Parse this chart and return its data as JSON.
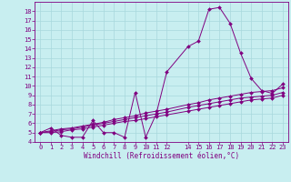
{
  "xlabel": "Windchill (Refroidissement éolien,°C)",
  "bg_color": "#c8eef0",
  "line_color": "#800080",
  "grid_color": "#a8d8dc",
  "xlim": [
    -0.5,
    23.5
  ],
  "ylim": [
    4,
    19
  ],
  "xticks": [
    0,
    1,
    2,
    3,
    4,
    5,
    6,
    7,
    8,
    9,
    10,
    11,
    12,
    14,
    15,
    16,
    17,
    18,
    19,
    20,
    21,
    22,
    23
  ],
  "yticks": [
    4,
    5,
    6,
    7,
    8,
    9,
    10,
    11,
    12,
    13,
    14,
    15,
    16,
    17,
    18
  ],
  "series1_x": [
    0,
    1,
    2,
    3,
    4,
    5,
    6,
    7,
    8,
    9,
    10,
    11,
    12,
    14,
    15,
    16,
    17,
    18,
    19,
    20,
    21,
    22,
    23
  ],
  "series1_y": [
    5.0,
    5.5,
    4.7,
    4.5,
    4.5,
    6.3,
    5.0,
    5.0,
    4.5,
    9.3,
    4.5,
    7.0,
    11.5,
    14.2,
    14.8,
    18.2,
    18.4,
    16.7,
    13.5,
    10.8,
    9.5,
    9.2,
    10.2
  ],
  "series2_x": [
    0,
    1,
    2,
    3,
    4,
    5,
    6,
    7,
    8,
    9,
    10,
    11,
    12,
    14,
    15,
    16,
    17,
    18,
    19,
    20,
    21,
    22,
    23
  ],
  "series2_y": [
    5.0,
    5.2,
    5.4,
    5.5,
    5.7,
    5.9,
    6.1,
    6.4,
    6.6,
    6.8,
    7.1,
    7.3,
    7.5,
    8.0,
    8.2,
    8.5,
    8.7,
    8.9,
    9.1,
    9.3,
    9.4,
    9.5,
    9.8
  ],
  "series3_x": [
    0,
    1,
    2,
    3,
    4,
    5,
    6,
    7,
    8,
    9,
    10,
    11,
    12,
    14,
    15,
    16,
    17,
    18,
    19,
    20,
    21,
    22,
    23
  ],
  "series3_y": [
    5.0,
    5.1,
    5.3,
    5.4,
    5.6,
    5.8,
    6.0,
    6.2,
    6.4,
    6.6,
    6.8,
    7.0,
    7.2,
    7.7,
    7.9,
    8.1,
    8.3,
    8.5,
    8.7,
    8.8,
    8.9,
    9.0,
    9.3
  ],
  "series4_x": [
    0,
    1,
    2,
    3,
    4,
    5,
    6,
    7,
    8,
    9,
    10,
    11,
    12,
    14,
    15,
    16,
    17,
    18,
    19,
    20,
    21,
    22,
    23
  ],
  "series4_y": [
    5.0,
    5.0,
    5.1,
    5.3,
    5.4,
    5.6,
    5.8,
    6.0,
    6.2,
    6.3,
    6.5,
    6.7,
    6.9,
    7.3,
    7.5,
    7.7,
    7.9,
    8.1,
    8.3,
    8.5,
    8.6,
    8.7,
    9.0
  ],
  "font_size_ticks": 5,
  "font_size_xlabel": 5.5,
  "linewidth": 0.7,
  "markersize": 2.0
}
